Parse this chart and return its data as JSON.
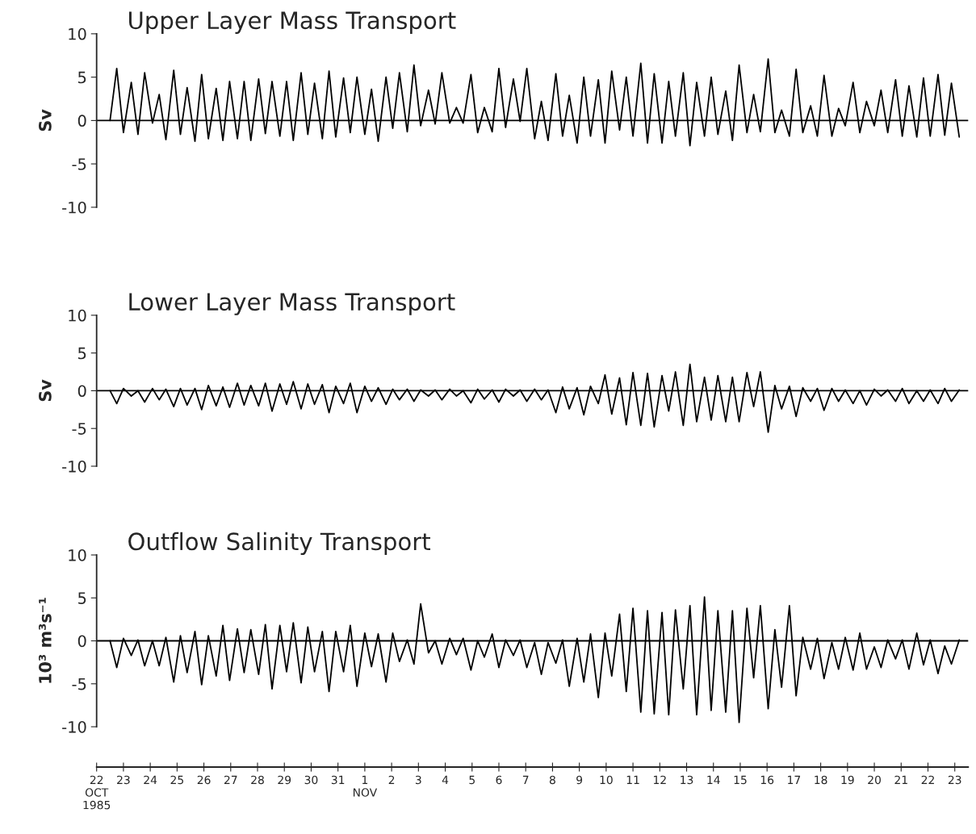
{
  "chart_data": [
    {
      "type": "line",
      "title": "Upper Layer Mass Transport",
      "ylabel": "Sv",
      "ylim": [
        -10,
        10
      ],
      "yticks": [
        -10,
        -5,
        0,
        5,
        10
      ],
      "xlim": [
        "1985-10-22T00:00",
        "1985-11-23T12:00"
      ],
      "tick_labels": "y",
      "grid": false,
      "ref_lines": [
        {
          "axis": "y",
          "value": 0,
          "color": "#000000"
        }
      ],
      "x": [
        "1985-10-22T12:00",
        "1985-10-22T18:00",
        "1985-10-23T00:00",
        "1985-10-23T07:00",
        "1985-10-23T13:00",
        "1985-10-23T19:00",
        "1985-10-24T02:00",
        "1985-10-24T08:00",
        "1985-10-24T14:00",
        "1985-10-24T21:00",
        "1985-10-25T03:00",
        "1985-10-25T09:00",
        "1985-10-25T16:00",
        "1985-10-25T22:00",
        "1985-10-26T04:00",
        "1985-10-26T11:00",
        "1985-10-26T17:00",
        "1985-10-26T23:00",
        "1985-10-27T06:00",
        "1985-10-27T12:00",
        "1985-10-27T18:00",
        "1985-10-28T01:00",
        "1985-10-28T07:00",
        "1985-10-28T13:00",
        "1985-10-28T20:00",
        "1985-10-29T02:00",
        "1985-10-29T08:00",
        "1985-10-29T15:00",
        "1985-10-29T21:00",
        "1985-10-30T03:00",
        "1985-10-30T10:00",
        "1985-10-30T16:00",
        "1985-10-30T22:00",
        "1985-10-31T05:00",
        "1985-10-31T11:00",
        "1985-10-31T17:00",
        "1985-11-01T00:00",
        "1985-11-01T06:00",
        "1985-11-01T12:00",
        "1985-11-01T19:00",
        "1985-11-02T01:00",
        "1985-11-02T07:00",
        "1985-11-02T14:00",
        "1985-11-02T20:00",
        "1985-11-03T02:00",
        "1985-11-03T09:00",
        "1985-11-03T15:00",
        "1985-11-03T21:00",
        "1985-11-04T04:00",
        "1985-11-04T10:00",
        "1985-11-04T16:00",
        "1985-11-04T23:00",
        "1985-11-05T05:00",
        "1985-11-05T11:00",
        "1985-11-05T18:00",
        "1985-11-06T00:00",
        "1985-11-06T06:00",
        "1985-11-06T13:00",
        "1985-11-06T19:00",
        "1985-11-07T01:00",
        "1985-11-07T08:00",
        "1985-11-07T14:00",
        "1985-11-07T20:00",
        "1985-11-08T03:00",
        "1985-11-08T09:00",
        "1985-11-08T15:00",
        "1985-11-08T22:00",
        "1985-11-09T04:00",
        "1985-11-09T10:00",
        "1985-11-09T17:00",
        "1985-11-09T23:00",
        "1985-11-10T05:00",
        "1985-11-10T12:00",
        "1985-11-10T18:00",
        "1985-11-11T00:00",
        "1985-11-11T07:00",
        "1985-11-11T13:00",
        "1985-11-11T19:00",
        "1985-11-12T02:00",
        "1985-11-12T08:00",
        "1985-11-12T14:00",
        "1985-11-12T21:00",
        "1985-11-13T03:00",
        "1985-11-13T09:00",
        "1985-11-13T16:00",
        "1985-11-13T22:00",
        "1985-11-14T04:00",
        "1985-11-14T11:00",
        "1985-11-14T17:00",
        "1985-11-14T23:00",
        "1985-11-15T06:00",
        "1985-11-15T12:00",
        "1985-11-15T18:00",
        "1985-11-16T01:00",
        "1985-11-16T07:00",
        "1985-11-16T13:00",
        "1985-11-16T20:00",
        "1985-11-17T02:00",
        "1985-11-17T08:00",
        "1985-11-17T15:00",
        "1985-11-17T21:00",
        "1985-11-18T03:00",
        "1985-11-18T10:00",
        "1985-11-18T16:00",
        "1985-11-18T22:00",
        "1985-11-19T05:00",
        "1985-11-19T11:00",
        "1985-11-19T17:00",
        "1985-11-20T00:00",
        "1985-11-20T06:00",
        "1985-11-20T12:00",
        "1985-11-20T19:00",
        "1985-11-21T01:00",
        "1985-11-21T07:00",
        "1985-11-21T14:00",
        "1985-11-21T20:00",
        "1985-11-22T02:00",
        "1985-11-22T09:00",
        "1985-11-22T15:00",
        "1985-11-22T21:00",
        "1985-11-23T04:00"
      ],
      "series": [
        {
          "color": "#000000",
          "values": [
            0,
            6.0,
            -1.4,
            4.4,
            -1.6,
            5.5,
            -0.3,
            3.0,
            -2.2,
            5.8,
            -1.6,
            3.8,
            -2.4,
            5.3,
            -2.1,
            3.7,
            -2.3,
            4.5,
            -2.1,
            4.5,
            -2.3,
            4.8,
            -1.5,
            4.5,
            -1.8,
            4.5,
            -2.3,
            5.5,
            -1.6,
            4.3,
            -2.1,
            5.7,
            -1.9,
            4.9,
            -1.4,
            5.0,
            -1.6,
            3.6,
            -2.4,
            5.0,
            -0.9,
            5.5,
            -1.3,
            6.4,
            -0.6,
            3.5,
            -0.4,
            5.5,
            -0.3,
            1.5,
            -0.3,
            5.3,
            -1.4,
            1.5,
            -1.3,
            6.0,
            -0.8,
            4.8,
            -0.1,
            6.0,
            -2.1,
            2.2,
            -2.3,
            5.4,
            -1.8,
            2.9,
            -2.6,
            5.0,
            -1.8,
            4.7,
            -2.6,
            5.7,
            -1.1,
            5.0,
            -1.8,
            6.6,
            -2.6,
            5.4,
            -2.6,
            4.5,
            -1.8,
            5.5,
            -2.9,
            4.4,
            -1.8,
            5.0,
            -1.6,
            3.4,
            -2.3,
            6.4,
            -1.4,
            3.0,
            -1.3,
            7.1,
            -1.4,
            1.2,
            -1.8,
            5.9,
            -1.4,
            1.7,
            -1.8,
            5.2,
            -1.8,
            1.4,
            -0.6,
            4.4,
            -1.4,
            2.2,
            -0.6,
            3.5,
            -1.4,
            4.7,
            -1.8,
            4.0,
            -1.9,
            4.9,
            -1.8,
            5.3,
            -1.7,
            4.3,
            -1.9
          ]
        }
      ]
    },
    {
      "type": "line",
      "title": "Lower Layer Mass Transport",
      "ylabel": "Sv",
      "ylim": [
        -10,
        10
      ],
      "yticks": [
        -10,
        -5,
        0,
        5,
        10
      ],
      "xlim": [
        "1985-10-22T00:00",
        "1985-11-23T12:00"
      ],
      "tick_labels": "y",
      "grid": false,
      "ref_lines": [
        {
          "axis": "y",
          "value": 0,
          "color": "#000000"
        }
      ],
      "x": [
        "1985-10-22T12:00",
        "1985-10-22T18:00",
        "1985-10-23T00:00",
        "1985-10-23T07:00",
        "1985-10-23T13:00",
        "1985-10-23T19:00",
        "1985-10-24T02:00",
        "1985-10-24T08:00",
        "1985-10-24T14:00",
        "1985-10-24T21:00",
        "1985-10-25T03:00",
        "1985-10-25T09:00",
        "1985-10-25T16:00",
        "1985-10-25T22:00",
        "1985-10-26T04:00",
        "1985-10-26T11:00",
        "1985-10-26T17:00",
        "1985-10-26T23:00",
        "1985-10-27T06:00",
        "1985-10-27T12:00",
        "1985-10-27T18:00",
        "1985-10-28T01:00",
        "1985-10-28T07:00",
        "1985-10-28T13:00",
        "1985-10-28T20:00",
        "1985-10-29T02:00",
        "1985-10-29T08:00",
        "1985-10-29T15:00",
        "1985-10-29T21:00",
        "1985-10-30T03:00",
        "1985-10-30T10:00",
        "1985-10-30T16:00",
        "1985-10-30T22:00",
        "1985-10-31T05:00",
        "1985-10-31T11:00",
        "1985-10-31T17:00",
        "1985-11-01T00:00",
        "1985-11-01T06:00",
        "1985-11-01T12:00",
        "1985-11-01T19:00",
        "1985-11-02T01:00",
        "1985-11-02T07:00",
        "1985-11-02T14:00",
        "1985-11-02T20:00",
        "1985-11-03T02:00",
        "1985-11-03T09:00",
        "1985-11-03T15:00",
        "1985-11-03T21:00",
        "1985-11-04T04:00",
        "1985-11-04T10:00",
        "1985-11-04T16:00",
        "1985-11-04T23:00",
        "1985-11-05T05:00",
        "1985-11-05T11:00",
        "1985-11-05T18:00",
        "1985-11-06T00:00",
        "1985-11-06T06:00",
        "1985-11-06T13:00",
        "1985-11-06T19:00",
        "1985-11-07T01:00",
        "1985-11-07T08:00",
        "1985-11-07T14:00",
        "1985-11-07T20:00",
        "1985-11-08T03:00",
        "1985-11-08T09:00",
        "1985-11-08T15:00",
        "1985-11-08T22:00",
        "1985-11-09T04:00",
        "1985-11-09T10:00",
        "1985-11-09T17:00",
        "1985-11-09T23:00",
        "1985-11-10T05:00",
        "1985-11-10T12:00",
        "1985-11-10T18:00",
        "1985-11-11T00:00",
        "1985-11-11T07:00",
        "1985-11-11T13:00",
        "1985-11-11T19:00",
        "1985-11-12T02:00",
        "1985-11-12T08:00",
        "1985-11-12T14:00",
        "1985-11-12T21:00",
        "1985-11-13T03:00",
        "1985-11-13T09:00",
        "1985-11-13T16:00",
        "1985-11-13T22:00",
        "1985-11-14T04:00",
        "1985-11-14T11:00",
        "1985-11-14T17:00",
        "1985-11-14T23:00",
        "1985-11-15T06:00",
        "1985-11-15T12:00",
        "1985-11-15T18:00",
        "1985-11-16T01:00",
        "1985-11-16T07:00",
        "1985-11-16T13:00",
        "1985-11-16T20:00",
        "1985-11-17T02:00",
        "1985-11-17T08:00",
        "1985-11-17T15:00",
        "1985-11-17T21:00",
        "1985-11-18T03:00",
        "1985-11-18T10:00",
        "1985-11-18T16:00",
        "1985-11-18T22:00",
        "1985-11-19T05:00",
        "1985-11-19T11:00",
        "1985-11-19T17:00",
        "1985-11-20T00:00",
        "1985-11-20T06:00",
        "1985-11-20T12:00",
        "1985-11-20T19:00",
        "1985-11-21T01:00",
        "1985-11-21T07:00",
        "1985-11-21T14:00",
        "1985-11-21T20:00",
        "1985-11-22T02:00",
        "1985-11-22T09:00",
        "1985-11-22T15:00",
        "1985-11-22T21:00",
        "1985-11-23T04:00"
      ],
      "series": [
        {
          "color": "#000000",
          "values": [
            0,
            -1.7,
            0.3,
            -0.7,
            0,
            -1.5,
            0.3,
            -1.2,
            0.2,
            -2.1,
            0.3,
            -1.9,
            0.3,
            -2.5,
            0.7,
            -2.0,
            0.5,
            -2.2,
            1.0,
            -1.9,
            0.7,
            -2.0,
            1.0,
            -2.7,
            0.9,
            -1.8,
            1.2,
            -2.4,
            0.9,
            -1.8,
            0.8,
            -2.9,
            0.6,
            -1.7,
            1.0,
            -2.9,
            0.6,
            -1.4,
            0.4,
            -1.8,
            0.2,
            -1.2,
            0.2,
            -1.4,
            0.1,
            -0.7,
            0.1,
            -1.2,
            0.2,
            -0.7,
            0,
            -1.6,
            0.2,
            -1.1,
            0.1,
            -1.5,
            0.2,
            -0.7,
            0.1,
            -1.4,
            0.2,
            -1.2,
            0.1,
            -2.9,
            0.5,
            -2.4,
            0.4,
            -3.2,
            0.6,
            -1.7,
            2.1,
            -3.1,
            1.7,
            -4.5,
            2.4,
            -4.6,
            2.3,
            -4.8,
            2.0,
            -2.7,
            2.5,
            -4.6,
            3.5,
            -4.1,
            1.8,
            -3.9,
            2.0,
            -4.1,
            1.8,
            -4.1,
            2.4,
            -2.1,
            2.5,
            -5.5,
            0.7,
            -2.4,
            0.6,
            -3.4,
            0.4,
            -1.4,
            0.3,
            -2.6,
            0.3,
            -1.4,
            0.1,
            -1.7,
            0,
            -1.9,
            0.2,
            -0.7,
            0.1,
            -1.4,
            0.3,
            -1.7,
            0,
            -1.4,
            0.1,
            -1.7,
            0.3,
            -1.4,
            0.1
          ]
        }
      ]
    },
    {
      "type": "line",
      "title": "Outflow Salinity Transport",
      "ylabel": "10³ m³s⁻¹",
      "ylim": [
        -10,
        10
      ],
      "yticks": [
        -10,
        -5,
        0,
        5,
        10
      ],
      "xlim": [
        "1985-10-22T00:00",
        "1985-11-23T12:00"
      ],
      "grid": false,
      "xticks": [
        {
          "value": "1985-10-22",
          "label": "22\nOCT\n1985"
        },
        {
          "value": "1985-10-23",
          "label": "23"
        },
        {
          "value": "1985-10-24",
          "label": "24"
        },
        {
          "value": "1985-10-25",
          "label": "25"
        },
        {
          "value": "1985-10-26",
          "label": "26"
        },
        {
          "value": "1985-10-27",
          "label": "27"
        },
        {
          "value": "1985-10-28",
          "label": "28"
        },
        {
          "value": "1985-10-29",
          "label": "29"
        },
        {
          "value": "1985-10-30",
          "label": "30"
        },
        {
          "value": "1985-10-31",
          "label": "31"
        },
        {
          "value": "1985-11-01",
          "label": "1\nNOV"
        },
        {
          "value": "1985-11-02",
          "label": "2"
        },
        {
          "value": "1985-11-03",
          "label": "3"
        },
        {
          "value": "1985-11-04",
          "label": "4"
        },
        {
          "value": "1985-11-05",
          "label": "5"
        },
        {
          "value": "1985-11-06",
          "label": "6"
        },
        {
          "value": "1985-11-07",
          "label": "7"
        },
        {
          "value": "1985-11-08",
          "label": "8"
        },
        {
          "value": "1985-11-09",
          "label": "9"
        },
        {
          "value": "1985-11-10",
          "label": "10"
        },
        {
          "value": "1985-11-11",
          "label": "11"
        },
        {
          "value": "1985-11-12",
          "label": "12"
        },
        {
          "value": "1985-11-13",
          "label": "13"
        },
        {
          "value": "1985-11-14",
          "label": "14"
        },
        {
          "value": "1985-11-15",
          "label": "15"
        },
        {
          "value": "1985-11-16",
          "label": "16"
        },
        {
          "value": "1985-11-17",
          "label": "17"
        },
        {
          "value": "1985-11-18",
          "label": "18"
        },
        {
          "value": "1985-11-19",
          "label": "19"
        },
        {
          "value": "1985-11-20",
          "label": "20"
        },
        {
          "value": "1985-11-21",
          "label": "21"
        },
        {
          "value": "1985-11-22",
          "label": "22"
        },
        {
          "value": "1985-11-23",
          "label": "23"
        }
      ],
      "ref_lines": [
        {
          "axis": "y",
          "value": 0,
          "color": "#000000"
        }
      ],
      "x": [
        "1985-10-22T12:00",
        "1985-10-22T18:00",
        "1985-10-23T00:00",
        "1985-10-23T07:00",
        "1985-10-23T13:00",
        "1985-10-23T19:00",
        "1985-10-24T02:00",
        "1985-10-24T08:00",
        "1985-10-24T14:00",
        "1985-10-24T21:00",
        "1985-10-25T03:00",
        "1985-10-25T09:00",
        "1985-10-25T16:00",
        "1985-10-25T22:00",
        "1985-10-26T04:00",
        "1985-10-26T11:00",
        "1985-10-26T17:00",
        "1985-10-26T23:00",
        "1985-10-27T06:00",
        "1985-10-27T12:00",
        "1985-10-27T18:00",
        "1985-10-28T01:00",
        "1985-10-28T07:00",
        "1985-10-28T13:00",
        "1985-10-28T20:00",
        "1985-10-29T02:00",
        "1985-10-29T08:00",
        "1985-10-29T15:00",
        "1985-10-29T21:00",
        "1985-10-30T03:00",
        "1985-10-30T10:00",
        "1985-10-30T16:00",
        "1985-10-30T22:00",
        "1985-10-31T05:00",
        "1985-10-31T11:00",
        "1985-10-31T17:00",
        "1985-11-01T00:00",
        "1985-11-01T06:00",
        "1985-11-01T12:00",
        "1985-11-01T19:00",
        "1985-11-02T01:00",
        "1985-11-02T07:00",
        "1985-11-02T14:00",
        "1985-11-02T20:00",
        "1985-11-03T02:00",
        "1985-11-03T09:00",
        "1985-11-03T15:00",
        "1985-11-03T21:00",
        "1985-11-04T04:00",
        "1985-11-04T10:00",
        "1985-11-04T16:00",
        "1985-11-04T23:00",
        "1985-11-05T05:00",
        "1985-11-05T11:00",
        "1985-11-05T18:00",
        "1985-11-06T00:00",
        "1985-11-06T06:00",
        "1985-11-06T13:00",
        "1985-11-06T19:00",
        "1985-11-07T01:00",
        "1985-11-07T08:00",
        "1985-11-07T14:00",
        "1985-11-07T20:00",
        "1985-11-08T03:00",
        "1985-11-08T09:00",
        "1985-11-08T15:00",
        "1985-11-08T22:00",
        "1985-11-09T04:00",
        "1985-11-09T10:00",
        "1985-11-09T17:00",
        "1985-11-09T23:00",
        "1985-11-10T05:00",
        "1985-11-10T12:00",
        "1985-11-10T18:00",
        "1985-11-11T00:00",
        "1985-11-11T07:00",
        "1985-11-11T13:00",
        "1985-11-11T19:00",
        "1985-11-12T02:00",
        "1985-11-12T08:00",
        "1985-11-12T14:00",
        "1985-11-12T21:00",
        "1985-11-13T03:00",
        "1985-11-13T09:00",
        "1985-11-13T16:00",
        "1985-11-13T22:00",
        "1985-11-14T04:00",
        "1985-11-14T11:00",
        "1985-11-14T17:00",
        "1985-11-14T23:00",
        "1985-11-15T06:00",
        "1985-11-15T12:00",
        "1985-11-15T18:00",
        "1985-11-16T01:00",
        "1985-11-16T07:00",
        "1985-11-16T13:00",
        "1985-11-16T20:00",
        "1985-11-17T02:00",
        "1985-11-17T08:00",
        "1985-11-17T15:00",
        "1985-11-17T21:00",
        "1985-11-18T03:00",
        "1985-11-18T10:00",
        "1985-11-18T16:00",
        "1985-11-18T22:00",
        "1985-11-19T05:00",
        "1985-11-19T11:00",
        "1985-11-19T17:00",
        "1985-11-20T00:00",
        "1985-11-20T06:00",
        "1985-11-20T12:00",
        "1985-11-20T19:00",
        "1985-11-21T01:00",
        "1985-11-21T07:00",
        "1985-11-21T14:00",
        "1985-11-21T20:00",
        "1985-11-22T02:00",
        "1985-11-22T09:00",
        "1985-11-22T15:00",
        "1985-11-22T21:00",
        "1985-11-23T04:00"
      ],
      "series": [
        {
          "color": "#000000",
          "values": [
            0,
            -3.1,
            0.3,
            -1.7,
            0.1,
            -2.9,
            0,
            -2.9,
            0.4,
            -4.8,
            0.6,
            -3.7,
            1.1,
            -5.1,
            0.6,
            -4.1,
            1.8,
            -4.6,
            1.4,
            -3.7,
            1.3,
            -3.9,
            1.9,
            -5.6,
            1.8,
            -3.6,
            2.1,
            -4.9,
            1.6,
            -3.6,
            1.1,
            -5.9,
            1.1,
            -3.6,
            1.8,
            -5.3,
            0.9,
            -3.0,
            0.8,
            -4.8,
            0.9,
            -2.4,
            0.1,
            -2.7,
            4.3,
            -1.4,
            0,
            -2.7,
            0.3,
            -1.6,
            0.3,
            -3.4,
            0,
            -1.9,
            0.8,
            -3.1,
            0.1,
            -1.7,
            0.1,
            -3.1,
            -0.2,
            -3.9,
            -0.2,
            -2.6,
            0.1,
            -5.3,
            0.3,
            -4.8,
            0.8,
            -6.6,
            0.9,
            -4.1,
            3.1,
            -5.9,
            3.8,
            -8.3,
            3.5,
            -8.5,
            3.3,
            -8.6,
            3.6,
            -5.6,
            4.1,
            -8.6,
            5.1,
            -8.1,
            3.5,
            -8.3,
            3.5,
            -9.5,
            3.8,
            -4.3,
            4.1,
            -7.9,
            1.3,
            -5.4,
            4.1,
            -6.4,
            0.4,
            -3.3,
            0.3,
            -4.4,
            -0.2,
            -3.3,
            0.4,
            -3.4,
            0.9,
            -3.3,
            -0.7,
            -3.1,
            0.1,
            -2.1,
            0.1,
            -3.3,
            0.9,
            -2.8,
            0.1,
            -3.8,
            -0.6,
            -2.7,
            0.1
          ]
        }
      ]
    }
  ]
}
